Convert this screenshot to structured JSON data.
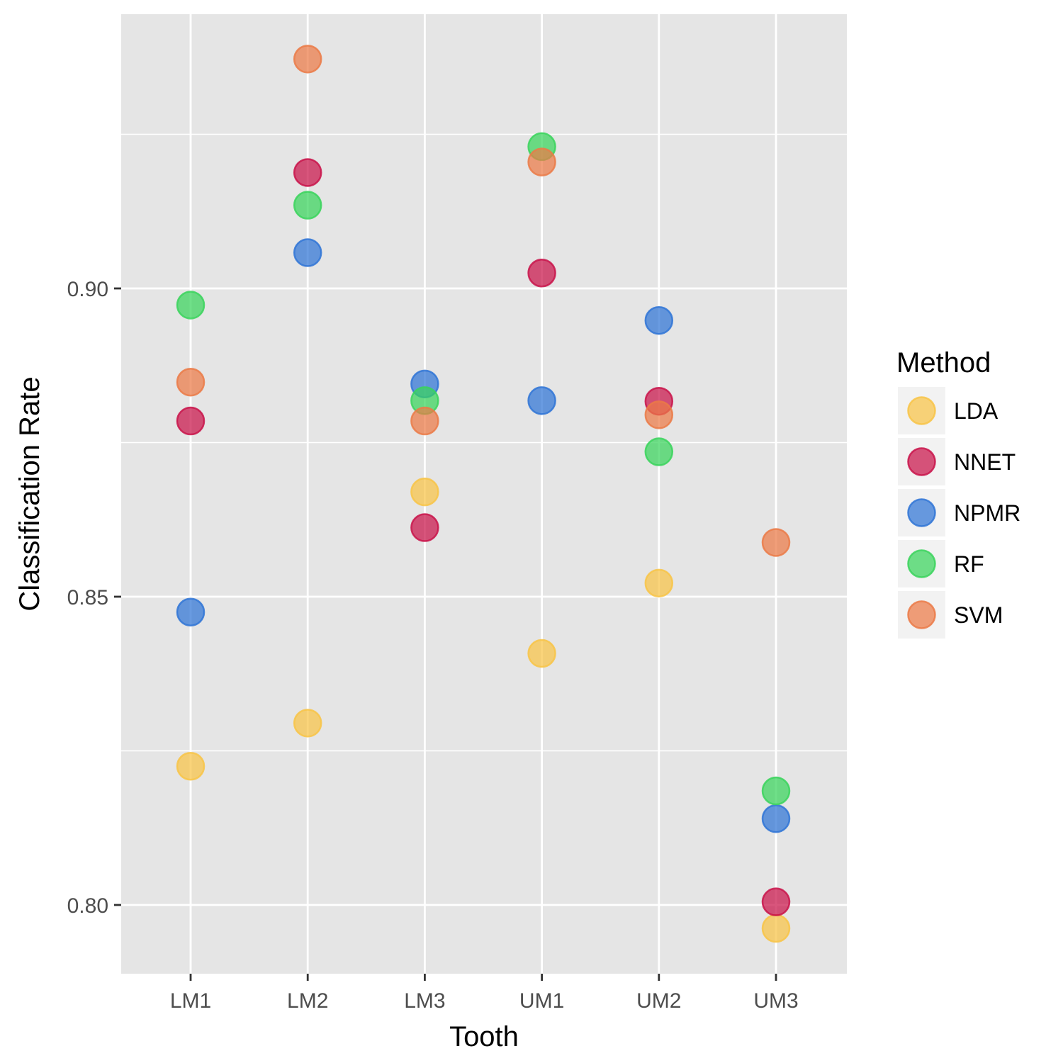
{
  "chart_data": {
    "type": "scatter",
    "xlabel": "Tooth",
    "ylabel": "Classification Rate",
    "categories": [
      "LM1",
      "LM2",
      "LM3",
      "UM1",
      "UM2",
      "UM3"
    ],
    "yticks": [
      0.8,
      0.85,
      0.9
    ],
    "ytick_labels": [
      "0.80",
      "0.85",
      "0.90"
    ],
    "ylim": [
      0.789,
      0.943
    ],
    "grid": true,
    "legend": {
      "title": "Method",
      "position": "right"
    },
    "series": [
      {
        "name": "LDA",
        "color": "#F8C447",
        "values": [
          0.8225,
          0.8295,
          null,
          0.8408,
          0.8522,
          0.7962
        ]
      },
      {
        "name": "NNET",
        "color": "#C9134A",
        "values": [
          0.8785,
          0.9188,
          0.8612,
          0.9025,
          0.8817,
          0.8005
        ]
      },
      {
        "name": "NPMR",
        "color": "#2F74D6",
        "values": [
          0.8475,
          0.9058,
          0.8845,
          0.8818,
          0.8948,
          0.814
        ]
      },
      {
        "name": "RF",
        "color": "#39D45C",
        "values": [
          0.8973,
          0.9135,
          0.8818,
          0.923,
          0.8735,
          0.8185
        ]
      },
      {
        "name": "SVM",
        "color": "#EB7A47",
        "values": [
          0.8848,
          0.9372,
          0.8785,
          0.9205,
          0.8795,
          0.8588
        ]
      }
    ],
    "extra_points": [
      {
        "series": "LDA",
        "category": "LM3",
        "value": 0.867
      }
    ]
  }
}
